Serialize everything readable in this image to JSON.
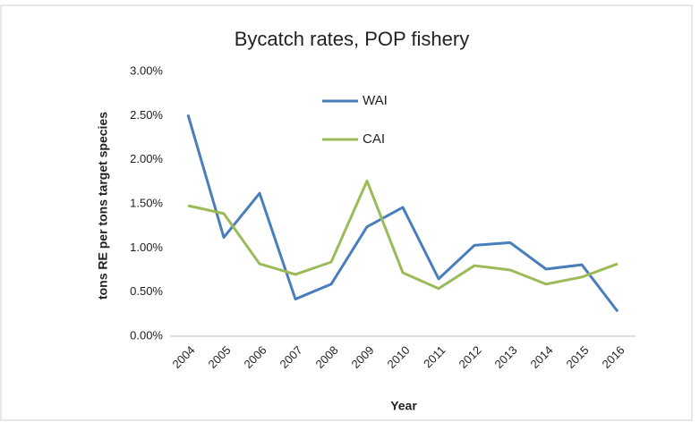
{
  "chart_data": {
    "type": "line",
    "title": "Bycatch rates, POP fishery",
    "x_label": "Year",
    "y_label": "tons RE per tons target species",
    "categories": [
      "2004",
      "2005",
      "2006",
      "2007",
      "2008",
      "2009",
      "2010",
      "2011",
      "2012",
      "2013",
      "2014",
      "2015",
      "2016"
    ],
    "series": [
      {
        "name": "WAI",
        "color": "#4a7ebb",
        "values": [
          2.51,
          1.12,
          1.62,
          0.42,
          0.59,
          1.24,
          1.46,
          0.65,
          1.03,
          1.06,
          0.76,
          0.81,
          0.28
        ]
      },
      {
        "name": "CAI",
        "color": "#9bbb59",
        "values": [
          1.48,
          1.39,
          0.82,
          0.7,
          0.84,
          1.76,
          0.72,
          0.54,
          0.8,
          0.75,
          0.59,
          0.67,
          0.82
        ]
      }
    ],
    "ylim": [
      0,
      3
    ],
    "yticks": [
      {
        "value": 0,
        "label": "0.00%"
      },
      {
        "value": 0.5,
        "label": "0.50%"
      },
      {
        "value": 1,
        "label": "1.00%"
      },
      {
        "value": 1.5,
        "label": "1.50%"
      },
      {
        "value": 2,
        "label": "2.00%"
      },
      {
        "value": 2.5,
        "label": "2.50%"
      },
      {
        "value": 3,
        "label": "3.00%"
      }
    ],
    "grid": false
  }
}
